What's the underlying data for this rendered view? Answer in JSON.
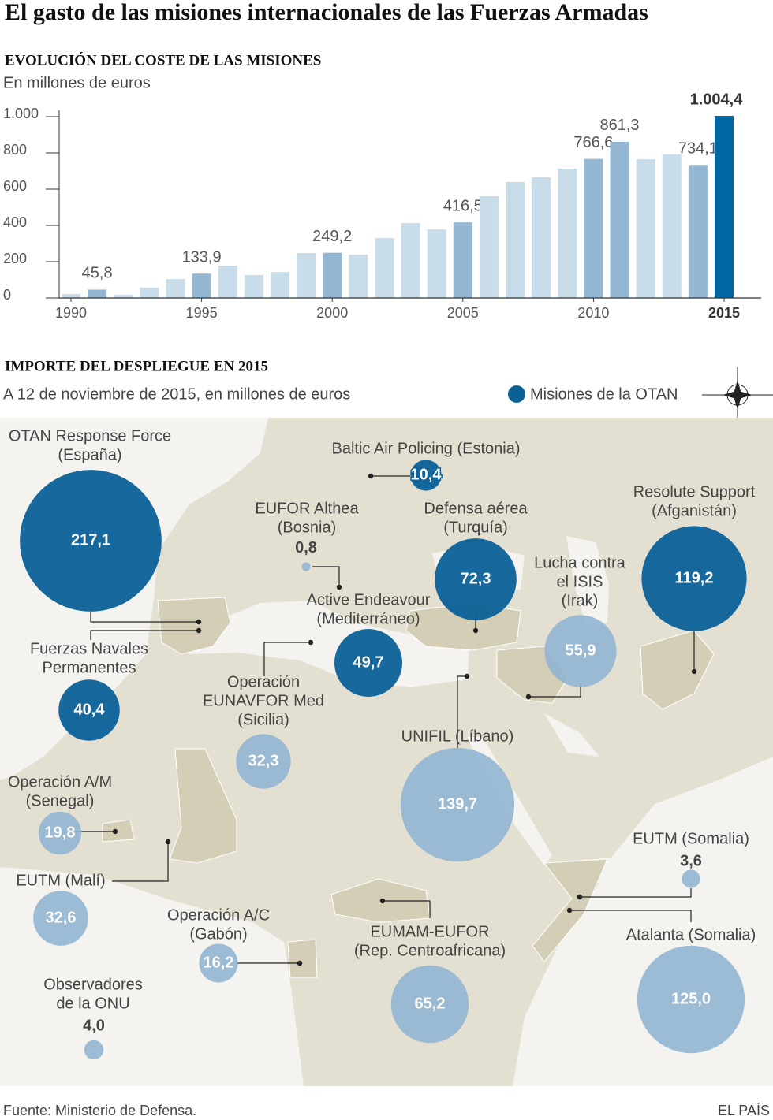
{
  "title": "El gasto de las misiones internacionales de las Fuerzas Armadas",
  "chart_data": [
    {
      "type": "bar",
      "title": "EVOLUCIÓN DEL COSTE DE LAS MISIONES",
      "subtitle": "En millones de euros",
      "x": [
        1990,
        1991,
        1992,
        1993,
        1994,
        1995,
        1996,
        1997,
        1998,
        1999,
        2000,
        2001,
        2002,
        2003,
        2004,
        2005,
        2006,
        2007,
        2008,
        2009,
        2010,
        2011,
        2012,
        2013,
        2014,
        2015
      ],
      "values": [
        22,
        45.8,
        18,
        57,
        104,
        133.9,
        178,
        126,
        143,
        248,
        249.2,
        239,
        330,
        413,
        378,
        416.5,
        561,
        639,
        665,
        713,
        766.6,
        861.3,
        765,
        791,
        734.1,
        1004.4
      ],
      "value_labels": [
        null,
        "45,8",
        null,
        null,
        null,
        "133,9",
        null,
        null,
        null,
        null,
        "249,2",
        null,
        null,
        null,
        null,
        "416,5",
        null,
        null,
        null,
        null,
        "766,6",
        "861,3",
        null,
        null,
        "734,1",
        "1.004,4"
      ],
      "colors": [
        "#c9dcea",
        "#94b8d4",
        "#c9dcea",
        "#c9dcea",
        "#c9dcea",
        "#94b8d4",
        "#c9dcea",
        "#c9dcea",
        "#c9dcea",
        "#c9dcea",
        "#94b8d4",
        "#c9dcea",
        "#c9dcea",
        "#c9dcea",
        "#c9dcea",
        "#94b8d4",
        "#c9dcea",
        "#c9dcea",
        "#c9dcea",
        "#c9dcea",
        "#94b8d4",
        "#94b8d4",
        "#c9dcea",
        "#c9dcea",
        "#94b8d4",
        "#0066a1"
      ],
      "xlim": [
        1990,
        2015
      ],
      "xticks": [
        1990,
        1995,
        2000,
        2005,
        2010,
        2015
      ],
      "ylim": [
        0,
        1000
      ],
      "yticks": [
        0,
        200,
        400,
        600,
        800,
        {
          "value": 1000,
          "label": "1.000"
        }
      ]
    },
    {
      "type": "bubble",
      "title": "IMPORTE DEL DESPLIEGUE EN 2015",
      "subtitle": "A 12 de noviembre de 2015, en millones de euros",
      "legend": "Misiones de la OTAN",
      "color": "#0b6098",
      "other_color": "#8fb3d2",
      "categories": [
        [
          "OTAN Response Force",
          "(España)"
        ],
        [
          "Baltic Air Policing (Estonia)"
        ],
        [
          "EUFOR Althea",
          "(Bosnia)"
        ],
        [
          "Defensa aérea",
          "(Turquía)"
        ],
        [
          "Resolute Support",
          "(Afganistán)"
        ],
        [
          "Lucha contra",
          "el ISIS",
          "(Irak)"
        ],
        [
          "Active Endeavour",
          "(Mediterráneo)"
        ],
        [
          "Fuerzas Navales",
          "Permanentes"
        ],
        [
          "Operación",
          "EUNAVFOR Med",
          "(Sicilia)"
        ],
        [
          "UNIFIL (Líbano)"
        ],
        [
          "Operación A/M",
          "(Senegal)"
        ],
        [
          "EUTM (Malí)"
        ],
        [
          "Operación A/C",
          "(Gabón)"
        ],
        [
          "EUMAM-EUFOR",
          "(Rep. Centroafricana)"
        ],
        [
          "EUTM (Somalia)"
        ],
        [
          "Atalanta (Somalia)"
        ],
        [
          "Observadores",
          "de la ONU"
        ]
      ],
      "values": [
        217.1,
        10.4,
        0.8,
        72.3,
        119.2,
        55.9,
        49.7,
        40.4,
        32.3,
        139.7,
        19.8,
        32.6,
        16.2,
        65.2,
        3.6,
        125.0,
        4.0
      ],
      "value_labels": [
        "217,1",
        "10,4",
        "0,8",
        "72,3",
        "119,2",
        "55,9",
        "49,7",
        "40,4",
        "32,3",
        "139,7",
        "19,8",
        "32,6",
        "16,2",
        "65,2",
        "3,6",
        "125,0",
        "4,0"
      ],
      "nato": [
        true,
        true,
        false,
        true,
        true,
        false,
        true,
        true,
        false,
        false,
        false,
        false,
        false,
        false,
        false,
        false,
        false
      ]
    }
  ],
  "source": "Fuente: Ministerio de Defensa.",
  "credit": "EL PAÍS"
}
